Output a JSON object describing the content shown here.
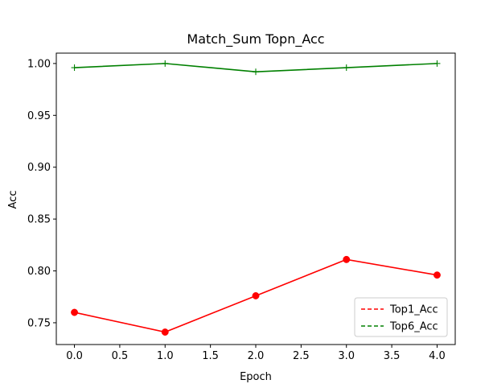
{
  "chart_data": {
    "type": "line",
    "title": "Match_Sum Topn_Acc",
    "xlabel": "Epoch",
    "ylabel": "Acc",
    "xlim": [
      -0.2,
      4.2
    ],
    "ylim": [
      0.729,
      1.01
    ],
    "xticks": [
      0.0,
      0.5,
      1.0,
      1.5,
      2.0,
      2.5,
      3.0,
      3.5,
      4.0
    ],
    "xtick_labels": [
      "0.0",
      "0.5",
      "1.0",
      "1.5",
      "2.0",
      "2.5",
      "3.0",
      "3.5",
      "4.0"
    ],
    "yticks": [
      0.75,
      0.8,
      0.85,
      0.9,
      0.95,
      1.0
    ],
    "ytick_labels": [
      "0.75",
      "0.80",
      "0.85",
      "0.90",
      "0.95",
      "1.00"
    ],
    "grid": false,
    "legend_position": "lower-right",
    "x": [
      0,
      1,
      2,
      3,
      4
    ],
    "series": [
      {
        "name": "Top1_Acc",
        "color": "#ff0000",
        "values": [
          0.76,
          0.741,
          0.776,
          0.811,
          0.796
        ],
        "marker": "circle",
        "line_style": "solid",
        "legend_line_style": "dashed"
      },
      {
        "name": "Top6_Acc",
        "color": "#008000",
        "values": [
          0.996,
          1.0,
          0.992,
          0.996,
          1.0
        ],
        "marker": "plus",
        "line_style": "solid",
        "legend_line_style": "dashed"
      }
    ]
  }
}
